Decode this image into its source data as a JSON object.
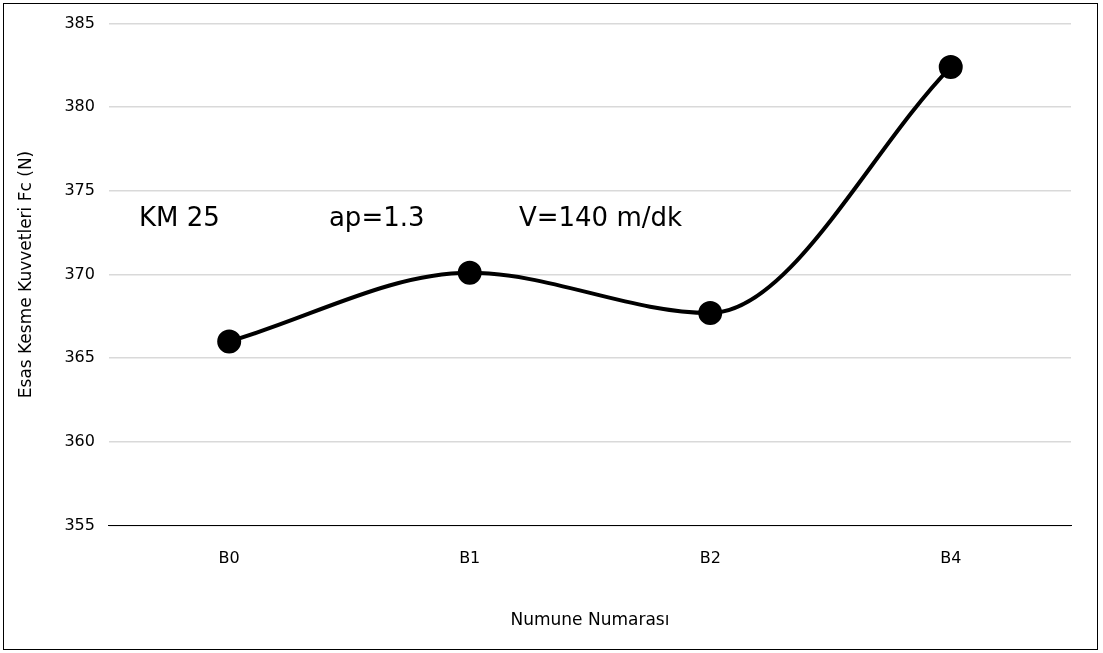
{
  "chart_data": {
    "type": "line",
    "xlabel": "Numune Numarası",
    "ylabel": "Esas Kesme Kuvvetleri Fc (N)",
    "categories": [
      "B0",
      "B1",
      "B2",
      "B4"
    ],
    "series": [
      {
        "color": "#000000",
        "values": [
          366.0,
          370.1,
          367.7,
          382.4
        ]
      }
    ],
    "ylim": [
      355,
      385
    ],
    "yticks": [
      355,
      360,
      365,
      370,
      375,
      380,
      385
    ],
    "grid": "y",
    "legend": false,
    "marker": "circle",
    "line_style": "solid",
    "annotations": [
      "KM 25",
      "ap=1.3",
      "V=140 m/dk"
    ]
  }
}
